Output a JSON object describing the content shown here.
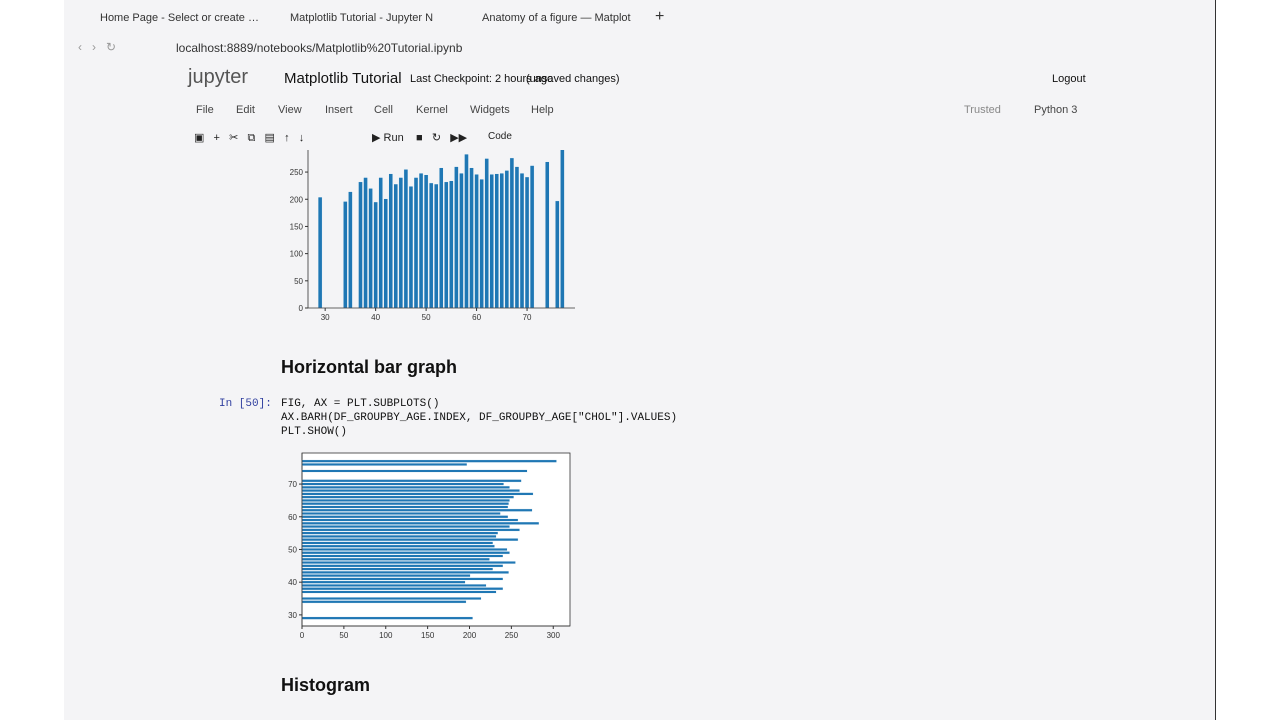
{
  "browser": {
    "tabs": [
      "Home Page - Select or create …",
      "Matplotlib Tutorial - Jupyter N",
      "Anatomy of a figure — Matplot"
    ],
    "url": "localhost:8889/notebooks/Matplotlib%20Tutorial.ipynb"
  },
  "notebook": {
    "logo": "jupyter",
    "title": "Matplotlib Tutorial",
    "checkpoint": "Last Checkpoint: 2 hours ago",
    "status": "(unsaved changes)",
    "logout": "Logout",
    "menu": [
      "File",
      "Edit",
      "View",
      "Insert",
      "Cell",
      "Kernel",
      "Widgets",
      "Help"
    ],
    "trusted": "Trusted",
    "kernel": "Python 3",
    "run": "Run",
    "cell_type": "Code"
  },
  "cells": {
    "heading1": "Horizontal bar graph",
    "prompt": "In [50]:",
    "code": [
      "FIG, AX = PLT.SUBPLOTS()",
      "AX.BARH(DF_GROUPBY_AGE.INDEX, DF_GROUPBY_AGE[\"CHOL\"].VALUES)",
      "PLT.SHOW()"
    ],
    "heading2": "Histogram"
  },
  "chart_data": [
    {
      "type": "bar",
      "categories_numeric": true,
      "x": [
        29,
        34,
        35,
        37,
        38,
        39,
        40,
        41,
        42,
        43,
        44,
        45,
        46,
        47,
        48,
        49,
        50,
        51,
        52,
        53,
        54,
        55,
        56,
        57,
        58,
        59,
        60,
        61,
        62,
        63,
        64,
        65,
        66,
        67,
        68,
        69,
        70,
        71,
        74,
        76,
        77
      ],
      "values": [
        204,
        196,
        214,
        232,
        240,
        220,
        195,
        240,
        201,
        247,
        228,
        240,
        255,
        224,
        240,
        248,
        245,
        230,
        228,
        258,
        232,
        234,
        260,
        248,
        283,
        258,
        246,
        237,
        275,
        246,
        247,
        248,
        253,
        276,
        260,
        248,
        241,
        262,
        269,
        197,
        304
      ],
      "color": "#1f77b4",
      "xlim": [
        26.6,
        79.5
      ],
      "xticks": [
        30,
        40,
        50,
        60,
        70
      ],
      "ylim": [
        0,
        320
      ],
      "yticks": [
        0,
        50,
        100,
        150,
        200,
        250
      ]
    },
    {
      "type": "barh",
      "x": [
        29,
        34,
        35,
        37,
        38,
        39,
        40,
        41,
        42,
        43,
        44,
        45,
        46,
        47,
        48,
        49,
        50,
        51,
        52,
        53,
        54,
        55,
        56,
        57,
        58,
        59,
        60,
        61,
        62,
        63,
        64,
        65,
        66,
        67,
        68,
        69,
        70,
        71,
        74,
        76,
        77
      ],
      "values": [
        204,
        196,
        214,
        232,
        240,
        220,
        195,
        240,
        201,
        247,
        228,
        240,
        255,
        224,
        240,
        248,
        245,
        230,
        228,
        258,
        232,
        234,
        260,
        248,
        283,
        258,
        246,
        237,
        275,
        246,
        247,
        248,
        253,
        276,
        260,
        248,
        241,
        262,
        269,
        197,
        304
      ],
      "color": "#1f77b4",
      "xlim": [
        0,
        320
      ],
      "xticks": [
        0,
        50,
        100,
        150,
        200,
        250,
        300
      ],
      "ylim": [
        26.6,
        79.5
      ],
      "yticks": [
        30,
        40,
        50,
        60,
        70
      ]
    }
  ]
}
